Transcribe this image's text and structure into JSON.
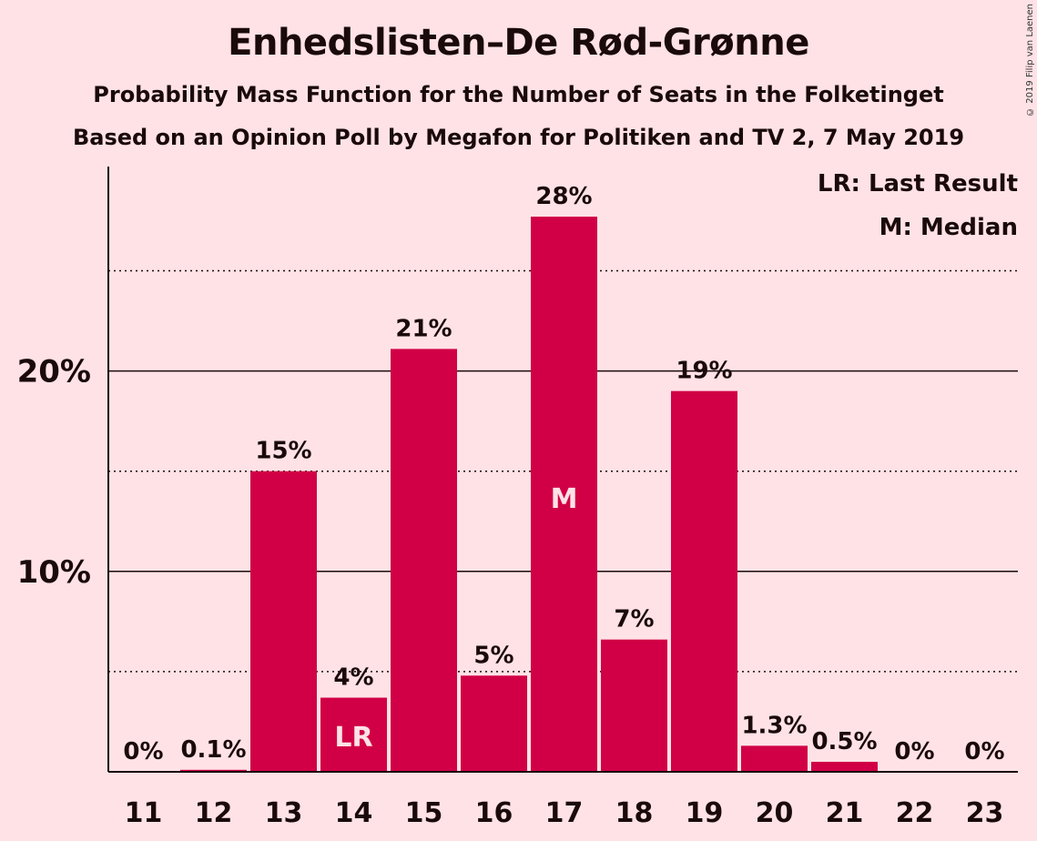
{
  "title": "Enhedslisten–De Rød-Grønne",
  "subtitle1": "Probability Mass Function for the Number of Seats in the Folketinget",
  "subtitle2": "Based on an Opinion Poll by Megafon for Politiken and TV 2, 7 May 2019",
  "copyright": "© 2019 Filip van Laenen",
  "legend": {
    "last_result": "LR: Last Result",
    "median": "M: Median"
  },
  "colors": {
    "bar": "#D10046",
    "background": "#FFE2E6"
  },
  "chart_data": {
    "type": "bar",
    "categories": [
      "11",
      "12",
      "13",
      "14",
      "15",
      "16",
      "17",
      "18",
      "19",
      "20",
      "21",
      "22",
      "23"
    ],
    "values": [
      0,
      0.1,
      15,
      3.7,
      21.1,
      4.8,
      27.7,
      6.6,
      19.0,
      1.3,
      0.5,
      0,
      0
    ],
    "value_labels": [
      "0%",
      "0.1%",
      "15%",
      "4%",
      "21%",
      "5%",
      "28%",
      "7%",
      "19%",
      "1.3%",
      "0.5%",
      "0%",
      "0%"
    ],
    "in_bar_labels": {
      "14": "LR",
      "17": "M"
    },
    "y_ticks": [
      {
        "value": 10,
        "label": "10%"
      },
      {
        "value": 20,
        "label": "20%"
      }
    ],
    "y_minor_gridlines": [
      5,
      15,
      25
    ],
    "ylim": [
      0,
      30.2
    ],
    "xlabel": "",
    "ylabel": "",
    "grid": true,
    "legend_position": "top-right"
  }
}
